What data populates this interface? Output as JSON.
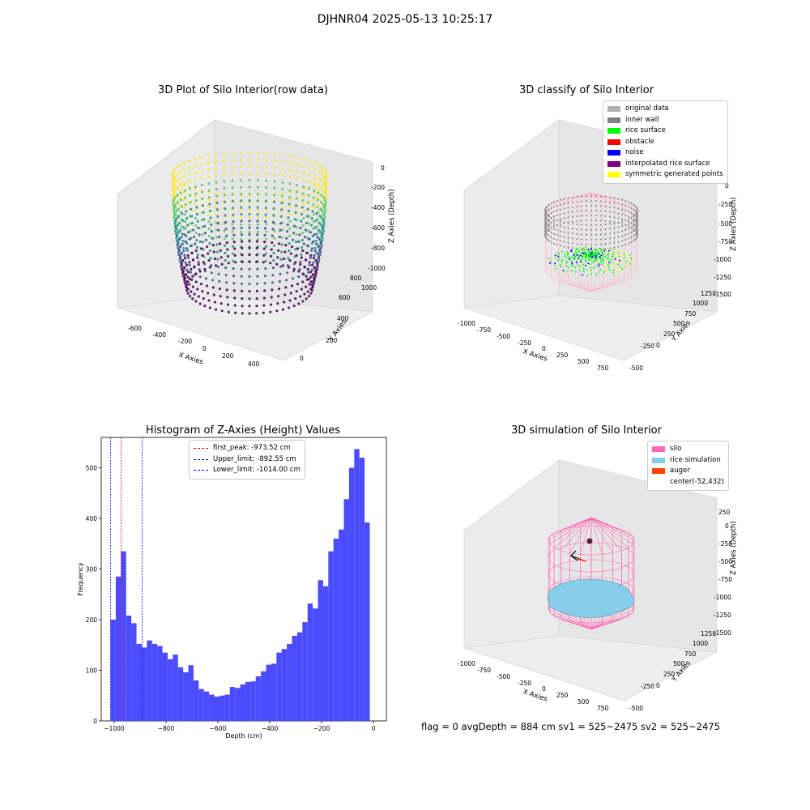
{
  "suptitle": "DJHNR04 2025-05-13 10:25:17",
  "panels": {
    "raw": {
      "title": "3D Plot of Silo Interior(row data)",
      "xlabel": "X Axies",
      "ylabel": "Y Axies",
      "zlabel": "Z Axies (Depth)",
      "xticks": [
        "-600",
        "-400",
        "-200",
        "0",
        "200",
        "400"
      ],
      "yticks": [
        "0",
        "200",
        "400",
        "600",
        "800",
        "1000"
      ],
      "zticks": [
        "0",
        "-200",
        "-400",
        "-600",
        "-800",
        "-1000"
      ],
      "colormap": [
        "#440154",
        "#3b528b",
        "#21918c",
        "#5ec962",
        "#fde725"
      ]
    },
    "classify": {
      "title": "3D classify of Silo Interior",
      "xlabel": "X Axies",
      "ylabel": "Y Axies",
      "zlabel": "Z Axies (Depth)",
      "xticks": [
        "-1000",
        "-750",
        "-500",
        "-250",
        "0",
        "250",
        "500",
        "750"
      ],
      "yticks": [
        "-500",
        "-250",
        "0",
        "250",
        "500",
        "750",
        "1000",
        "1250"
      ],
      "zticks": [
        "0",
        "-250",
        "-500",
        "-750",
        "-1000",
        "-1250",
        "-1500"
      ],
      "legend": [
        {
          "label": "original data",
          "color": "#b0b0b0"
        },
        {
          "label": "inner wall",
          "color": "#808080"
        },
        {
          "label": "rice surface",
          "color": "#00ff00"
        },
        {
          "label": "obstacle",
          "color": "#ff0000"
        },
        {
          "label": "noise",
          "color": "#0000ff"
        },
        {
          "label": "interpolated rice surface",
          "color": "#800080"
        },
        {
          "label": "symmetric generated points",
          "color": "#ffff00"
        }
      ]
    },
    "histogram": {
      "title": "Histogram of Z-Axies (Height) Values",
      "xlabel": "Depth (cm)",
      "ylabel": "Frequency",
      "legend": [
        {
          "label": "first_peak: -973.52 cm",
          "color": "#ff0000"
        },
        {
          "label": "Upper_limit: -892.55 cm",
          "color": "#0000ff"
        },
        {
          "label": "Lower_limit: -1014.00 cm",
          "color": "#0000ff"
        }
      ]
    },
    "simulation": {
      "title": "3D simulation of Silo Interior",
      "xlabel": "X Axies",
      "ylabel": "Y Axies",
      "zlabel": "Z Axies (Depth)",
      "xticks": [
        "-1000",
        "-750",
        "-500",
        "-250",
        "0",
        "250",
        "500",
        "750"
      ],
      "yticks": [
        "-500",
        "-250",
        "0",
        "250",
        "500",
        "750",
        "1000",
        "1250"
      ],
      "zticks": [
        "250",
        "0",
        "-250",
        "-500",
        "-750",
        "-1000",
        "-1250",
        "-1500"
      ],
      "legend": [
        {
          "label": "silo",
          "color": "#ff69b4"
        },
        {
          "label": "rice simulation",
          "color": "#87ceeb"
        },
        {
          "label": "auger",
          "color": "#ff4500"
        },
        {
          "label": "center(-52,432)",
          "color": ""
        }
      ]
    }
  },
  "footer": "flag = 0     avgDepth = 884 cm  sv1 = 525~2475  sv2 = 525~2475",
  "chart_data": {
    "type": "bar",
    "title": "Histogram of Z-Axies (Height) Values",
    "xlabel": "Depth (cm)",
    "ylabel": "Frequency",
    "xlim": [
      -1050,
      50
    ],
    "ylim": [
      0,
      560
    ],
    "xticks": [
      -1000,
      -800,
      -600,
      -400,
      -200,
      0
    ],
    "yticks": [
      0,
      100,
      200,
      300,
      400,
      500
    ],
    "bin_start": -1014,
    "bin_width": 20,
    "values": [
      200,
      285,
      335,
      208,
      193,
      152,
      145,
      159,
      152,
      148,
      135,
      122,
      131,
      106,
      96,
      110,
      80,
      63,
      58,
      52,
      48,
      50,
      52,
      67,
      65,
      72,
      77,
      78,
      88,
      98,
      111,
      113,
      135,
      142,
      152,
      168,
      175,
      195,
      232,
      222,
      278,
      266,
      335,
      360,
      378,
      438,
      500,
      537,
      520,
      392
    ],
    "vlines": [
      {
        "x": -973.52,
        "color": "#ff0000",
        "label": "first_peak: -973.52 cm"
      },
      {
        "x": -892.55,
        "color": "#0000ff",
        "label": "Upper_limit: -892.55 cm"
      },
      {
        "x": -1014.0,
        "color": "#0000ff",
        "label": "Lower_limit: -1014.00 cm"
      }
    ],
    "bar_color": "#4b4bff",
    "legend_position": "upper-center"
  }
}
